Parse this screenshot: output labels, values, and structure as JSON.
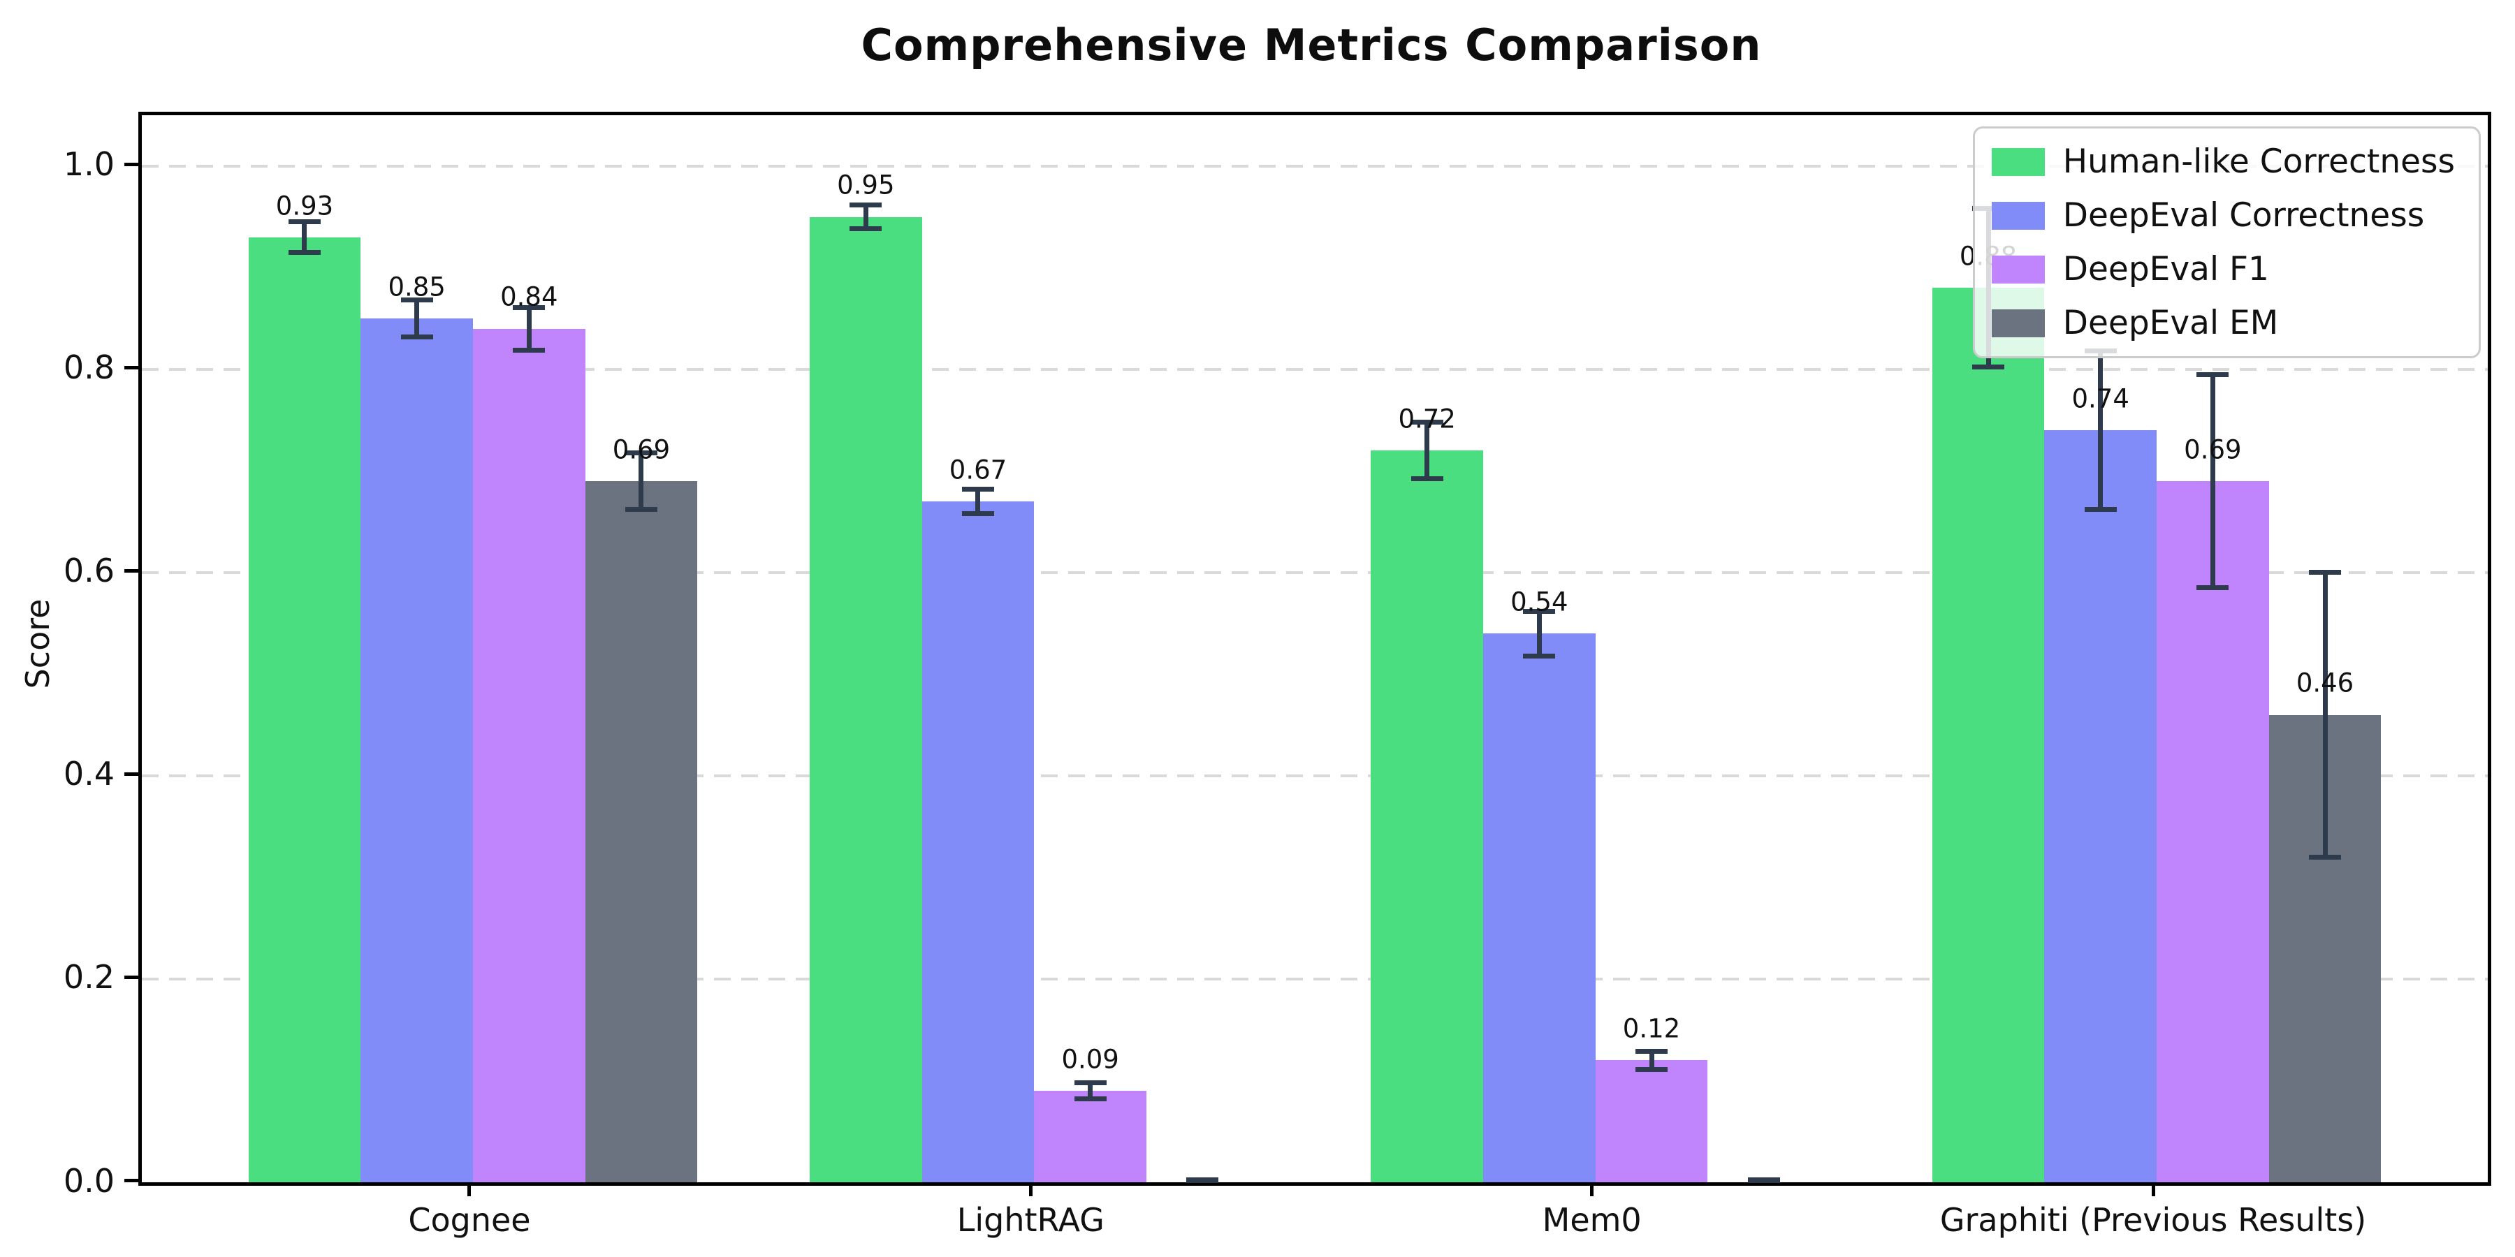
{
  "title": "Comprehensive Metrics Comparison",
  "ylabel": "Score",
  "chart_data": {
    "type": "bar",
    "categories": [
      "Cognee",
      "LightRAG",
      "Mem0",
      "Graphiti (Previous Results)"
    ],
    "series": [
      {
        "name": "Human-like Correctness",
        "color": "#4ade80",
        "values": [
          0.93,
          0.95,
          0.72,
          0.88
        ],
        "errors": [
          0.015,
          0.012,
          0.028,
          0.078
        ],
        "labels": [
          "0.93",
          "0.95",
          "0.72",
          "0.88"
        ]
      },
      {
        "name": "DeepEval Correctness",
        "color": "#818cf8",
        "values": [
          0.85,
          0.67,
          0.54,
          0.74
        ],
        "errors": [
          0.018,
          0.012,
          0.022,
          0.078
        ],
        "labels": [
          "0.85",
          "0.67",
          "0.54",
          "0.74"
        ]
      },
      {
        "name": "DeepEval F1",
        "color": "#c084fc",
        "values": [
          0.84,
          0.09,
          0.12,
          0.69
        ],
        "errors": [
          0.021,
          0.008,
          0.009,
          0.105
        ],
        "labels": [
          "0.84",
          "0.09",
          "0.12",
          "0.69"
        ]
      },
      {
        "name": "DeepEval EM",
        "color": "#6b7280",
        "values": [
          0.69,
          0.0,
          0.0,
          0.46
        ],
        "errors": [
          0.028,
          0.002,
          0.002,
          0.14
        ],
        "labels": [
          "0.69",
          "",
          "",
          "0.46"
        ]
      }
    ],
    "ylim": [
      0,
      1.05
    ],
    "yticks": [
      0.0,
      0.2,
      0.4,
      0.6,
      0.8,
      1.0
    ],
    "ytick_labels": [
      "0.0",
      "0.2",
      "0.4",
      "0.6",
      "0.8",
      "1.0"
    ],
    "xlim": [
      -0.59,
      3.59
    ],
    "bar_width": 0.2,
    "grid": "horizontal-dashed",
    "legend_position": "upper right",
    "error_bar_color": "#2d3b4d"
  }
}
